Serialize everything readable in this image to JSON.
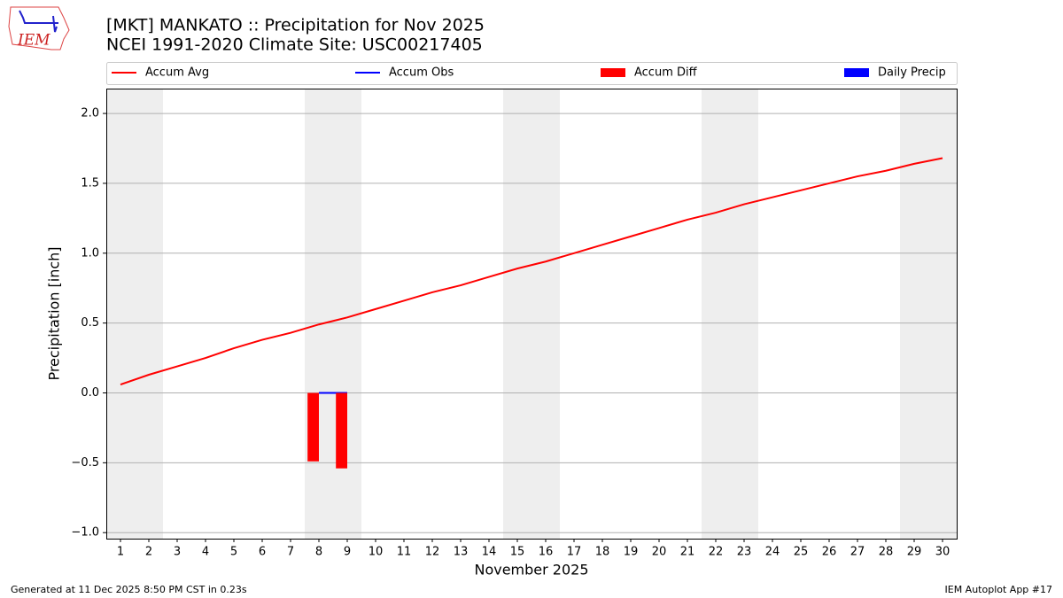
{
  "logo_text": "IEM",
  "chart_data": {
    "type": "combo",
    "title": "[MKT] MANKATO :: Precipitation for Nov 2025",
    "subtitle": "NCEI 1991-2020 Climate Site: USC00217405",
    "x_label": "November 2025",
    "y_label": "Precipitation [inch]",
    "x": [
      1,
      2,
      3,
      4,
      5,
      6,
      7,
      8,
      9,
      10,
      11,
      12,
      13,
      14,
      15,
      16,
      17,
      18,
      19,
      20,
      21,
      22,
      23,
      24,
      25,
      26,
      27,
      28,
      29,
      30
    ],
    "xlim": [
      0.5,
      30.5
    ],
    "xticks": [
      1,
      2,
      3,
      4,
      5,
      6,
      7,
      8,
      9,
      10,
      11,
      12,
      13,
      14,
      15,
      16,
      17,
      18,
      19,
      20,
      21,
      22,
      23,
      24,
      25,
      26,
      27,
      28,
      29,
      30
    ],
    "ylim": [
      -1.043,
      2.178
    ],
    "yticks": [
      {
        "value": -1.0,
        "label": "−1.0"
      },
      {
        "value": -0.5,
        "label": "−0.5"
      },
      {
        "value": 0.0,
        "label": "0.0"
      },
      {
        "value": 0.5,
        "label": "0.5"
      },
      {
        "value": 1.0,
        "label": "1.0"
      },
      {
        "value": 1.5,
        "label": "1.5"
      },
      {
        "value": 2.0,
        "label": "2.0"
      }
    ],
    "grid": true,
    "shaded_days": [
      [
        1,
        2
      ],
      [
        8,
        9
      ],
      [
        15,
        16
      ],
      [
        22,
        23
      ],
      [
        29,
        30
      ]
    ],
    "series": [
      {
        "name": "Accum Avg",
        "type": "line",
        "color": "#ff0000",
        "values": [
          0.06,
          0.13,
          0.19,
          0.25,
          0.32,
          0.38,
          0.43,
          0.49,
          0.54,
          0.6,
          0.66,
          0.72,
          0.77,
          0.83,
          0.89,
          0.94,
          1.0,
          1.06,
          1.12,
          1.18,
          1.24,
          1.29,
          1.35,
          1.4,
          1.45,
          1.5,
          1.55,
          1.59,
          1.64,
          1.68
        ]
      },
      {
        "name": "Accum Obs",
        "type": "line",
        "color": "#0000ff",
        "values": [
          null,
          null,
          null,
          null,
          null,
          null,
          null,
          0,
          0,
          null,
          null,
          null,
          null,
          null,
          null,
          null,
          null,
          null,
          null,
          null,
          null,
          null,
          null,
          null,
          null,
          null,
          null,
          null,
          null,
          null
        ]
      },
      {
        "name": "Accum Diff",
        "type": "bar",
        "align": "left",
        "color": "#ff0000",
        "values": [
          null,
          null,
          null,
          null,
          null,
          null,
          null,
          -0.49,
          -0.54,
          null,
          null,
          null,
          null,
          null,
          null,
          null,
          null,
          null,
          null,
          null,
          null,
          null,
          null,
          null,
          null,
          null,
          null,
          null,
          null,
          null
        ]
      },
      {
        "name": "Daily Precip",
        "type": "bar",
        "align": "right",
        "color": "#0000ff",
        "values": [
          null,
          null,
          null,
          null,
          null,
          null,
          null,
          0,
          0,
          null,
          null,
          null,
          null,
          null,
          null,
          null,
          null,
          null,
          null,
          null,
          null,
          null,
          null,
          null,
          null,
          null,
          null,
          null,
          null,
          null
        ]
      }
    ],
    "footer_left": "Generated at 11 Dec 2025 8:50 PM CST in 0.23s",
    "footer_right": "IEM Autoplot App #17"
  }
}
